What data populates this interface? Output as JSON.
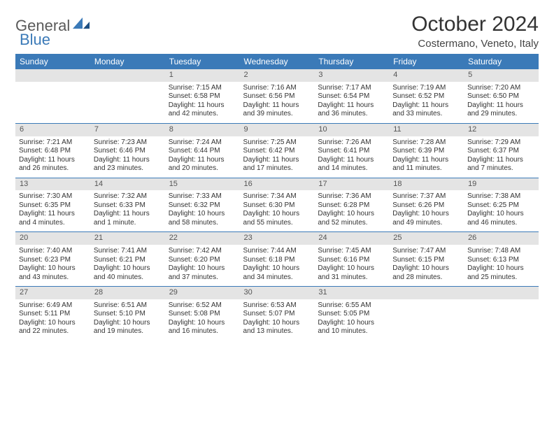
{
  "logo": {
    "part1": "General",
    "part2": "Blue"
  },
  "title": "October 2024",
  "location": "Costermano, Veneto, Italy",
  "colors": {
    "header_bg": "#3b7ab8",
    "header_text": "#ffffff",
    "daynum_bg": "#e4e4e4",
    "rule": "#3b7ab8",
    "body_text": "#333333",
    "page_bg": "#ffffff"
  },
  "weekdays": [
    "Sunday",
    "Monday",
    "Tuesday",
    "Wednesday",
    "Thursday",
    "Friday",
    "Saturday"
  ],
  "weeks": [
    [
      null,
      null,
      {
        "n": "1",
        "sunrise": "7:15 AM",
        "sunset": "6:58 PM",
        "daylight": "11 hours and 42 minutes."
      },
      {
        "n": "2",
        "sunrise": "7:16 AM",
        "sunset": "6:56 PM",
        "daylight": "11 hours and 39 minutes."
      },
      {
        "n": "3",
        "sunrise": "7:17 AM",
        "sunset": "6:54 PM",
        "daylight": "11 hours and 36 minutes."
      },
      {
        "n": "4",
        "sunrise": "7:19 AM",
        "sunset": "6:52 PM",
        "daylight": "11 hours and 33 minutes."
      },
      {
        "n": "5",
        "sunrise": "7:20 AM",
        "sunset": "6:50 PM",
        "daylight": "11 hours and 29 minutes."
      }
    ],
    [
      {
        "n": "6",
        "sunrise": "7:21 AM",
        "sunset": "6:48 PM",
        "daylight": "11 hours and 26 minutes."
      },
      {
        "n": "7",
        "sunrise": "7:23 AM",
        "sunset": "6:46 PM",
        "daylight": "11 hours and 23 minutes."
      },
      {
        "n": "8",
        "sunrise": "7:24 AM",
        "sunset": "6:44 PM",
        "daylight": "11 hours and 20 minutes."
      },
      {
        "n": "9",
        "sunrise": "7:25 AM",
        "sunset": "6:42 PM",
        "daylight": "11 hours and 17 minutes."
      },
      {
        "n": "10",
        "sunrise": "7:26 AM",
        "sunset": "6:41 PM",
        "daylight": "11 hours and 14 minutes."
      },
      {
        "n": "11",
        "sunrise": "7:28 AM",
        "sunset": "6:39 PM",
        "daylight": "11 hours and 11 minutes."
      },
      {
        "n": "12",
        "sunrise": "7:29 AM",
        "sunset": "6:37 PM",
        "daylight": "11 hours and 7 minutes."
      }
    ],
    [
      {
        "n": "13",
        "sunrise": "7:30 AM",
        "sunset": "6:35 PM",
        "daylight": "11 hours and 4 minutes."
      },
      {
        "n": "14",
        "sunrise": "7:32 AM",
        "sunset": "6:33 PM",
        "daylight": "11 hours and 1 minute."
      },
      {
        "n": "15",
        "sunrise": "7:33 AM",
        "sunset": "6:32 PM",
        "daylight": "10 hours and 58 minutes."
      },
      {
        "n": "16",
        "sunrise": "7:34 AM",
        "sunset": "6:30 PM",
        "daylight": "10 hours and 55 minutes."
      },
      {
        "n": "17",
        "sunrise": "7:36 AM",
        "sunset": "6:28 PM",
        "daylight": "10 hours and 52 minutes."
      },
      {
        "n": "18",
        "sunrise": "7:37 AM",
        "sunset": "6:26 PM",
        "daylight": "10 hours and 49 minutes."
      },
      {
        "n": "19",
        "sunrise": "7:38 AM",
        "sunset": "6:25 PM",
        "daylight": "10 hours and 46 minutes."
      }
    ],
    [
      {
        "n": "20",
        "sunrise": "7:40 AM",
        "sunset": "6:23 PM",
        "daylight": "10 hours and 43 minutes."
      },
      {
        "n": "21",
        "sunrise": "7:41 AM",
        "sunset": "6:21 PM",
        "daylight": "10 hours and 40 minutes."
      },
      {
        "n": "22",
        "sunrise": "7:42 AM",
        "sunset": "6:20 PM",
        "daylight": "10 hours and 37 minutes."
      },
      {
        "n": "23",
        "sunrise": "7:44 AM",
        "sunset": "6:18 PM",
        "daylight": "10 hours and 34 minutes."
      },
      {
        "n": "24",
        "sunrise": "7:45 AM",
        "sunset": "6:16 PM",
        "daylight": "10 hours and 31 minutes."
      },
      {
        "n": "25",
        "sunrise": "7:47 AM",
        "sunset": "6:15 PM",
        "daylight": "10 hours and 28 minutes."
      },
      {
        "n": "26",
        "sunrise": "7:48 AM",
        "sunset": "6:13 PM",
        "daylight": "10 hours and 25 minutes."
      }
    ],
    [
      {
        "n": "27",
        "sunrise": "6:49 AM",
        "sunset": "5:11 PM",
        "daylight": "10 hours and 22 minutes."
      },
      {
        "n": "28",
        "sunrise": "6:51 AM",
        "sunset": "5:10 PM",
        "daylight": "10 hours and 19 minutes."
      },
      {
        "n": "29",
        "sunrise": "6:52 AM",
        "sunset": "5:08 PM",
        "daylight": "10 hours and 16 minutes."
      },
      {
        "n": "30",
        "sunrise": "6:53 AM",
        "sunset": "5:07 PM",
        "daylight": "10 hours and 13 minutes."
      },
      {
        "n": "31",
        "sunrise": "6:55 AM",
        "sunset": "5:05 PM",
        "daylight": "10 hours and 10 minutes."
      },
      null,
      null
    ]
  ],
  "labels": {
    "sunrise": "Sunrise:",
    "sunset": "Sunset:",
    "daylight": "Daylight:"
  }
}
